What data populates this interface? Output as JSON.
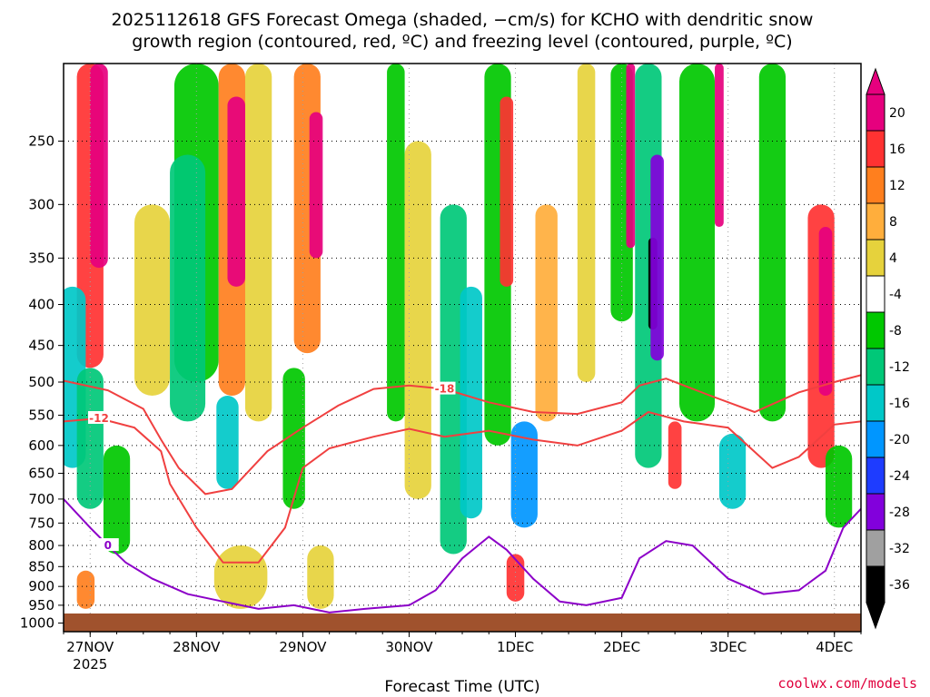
{
  "chart_data": {
    "type": "heatmap",
    "title_line1": "2025112618 GFS Forecast Omega (shaded, −cm/s) for KCHO with dendritic snow",
    "title_line2": "growth region (contoured, red, ºC) and freezing level (contoured, purple, ºC)",
    "xlabel": "Forecast Time (UTC)",
    "credit": "coolwx.com/models",
    "y_ticks": [
      "250",
      "300",
      "350",
      "400",
      "450",
      "500",
      "550",
      "600",
      "650",
      "700",
      "750",
      "800",
      "850",
      "900",
      "950",
      "1000"
    ],
    "y_values_hpa": [
      250,
      300,
      350,
      400,
      450,
      500,
      550,
      600,
      650,
      700,
      750,
      800,
      850,
      900,
      950,
      1000
    ],
    "ylim_hpa": [
      200,
      1025
    ],
    "x_ticks": [
      {
        "label": "27NOV",
        "sub": "2025",
        "hour": 6
      },
      {
        "label": "28NOV",
        "sub": "",
        "hour": 30
      },
      {
        "label": "29NOV",
        "sub": "",
        "hour": 54
      },
      {
        "label": "30NOV",
        "sub": "",
        "hour": 78
      },
      {
        "label": "1DEC",
        "sub": "",
        "hour": 102
      },
      {
        "label": "2DEC",
        "sub": "",
        "hour": 126
      },
      {
        "label": "3DEC",
        "sub": "",
        "hour": 150
      },
      {
        "label": "4DEC",
        "sub": "",
        "hour": 174
      }
    ],
    "xlim_hours": [
      0,
      180
    ],
    "colorbar": {
      "labels": [
        "20",
        "16",
        "12",
        "8",
        "4",
        "-4",
        "-8",
        "-12",
        "-16",
        "-20",
        "-24",
        "-28",
        "-32",
        "-36"
      ],
      "colors": [
        "#e6007e",
        "#ff3232",
        "#ff7f1e",
        "#ffae3c",
        "#e6d23c",
        "#ffffff",
        "#00c800",
        "#00c878",
        "#00c8c8",
        "#0096ff",
        "#1e3cff",
        "#8200dc",
        "#a0a0a0",
        "#000000"
      ]
    },
    "omega_cells": [
      {
        "t": 6,
        "p0": 200,
        "p1": 480,
        "w": 6,
        "v": 16
      },
      {
        "t": 8,
        "p0": 200,
        "p1": 360,
        "w": 4,
        "v": 22
      },
      {
        "t": 2,
        "p0": 380,
        "p1": 640,
        "w": 6,
        "v": -14
      },
      {
        "t": 6,
        "p0": 480,
        "p1": 720,
        "w": 6,
        "v": -10
      },
      {
        "t": 12,
        "p0": 600,
        "p1": 820,
        "w": 6,
        "v": -8
      },
      {
        "t": 5,
        "p0": 860,
        "p1": 960,
        "w": 4,
        "v": 14
      },
      {
        "t": 20,
        "p0": 300,
        "p1": 520,
        "w": 8,
        "v": 6
      },
      {
        "t": 30,
        "p0": 200,
        "p1": 500,
        "w": 10,
        "v": -8
      },
      {
        "t": 28,
        "p0": 260,
        "p1": 560,
        "w": 8,
        "v": -12
      },
      {
        "t": 38,
        "p0": 200,
        "p1": 520,
        "w": 6,
        "v": 12
      },
      {
        "t": 39,
        "p0": 220,
        "p1": 380,
        "w": 4,
        "v": 22
      },
      {
        "t": 37,
        "p0": 520,
        "p1": 680,
        "w": 5,
        "v": -14
      },
      {
        "t": 44,
        "p0": 200,
        "p1": 560,
        "w": 6,
        "v": 6
      },
      {
        "t": 40,
        "p0": 800,
        "p1": 960,
        "w": 12,
        "v": 6
      },
      {
        "t": 55,
        "p0": 200,
        "p1": 460,
        "w": 6,
        "v": 14
      },
      {
        "t": 57,
        "p0": 230,
        "p1": 350,
        "w": 3,
        "v": 22
      },
      {
        "t": 52,
        "p0": 480,
        "p1": 720,
        "w": 5,
        "v": -8
      },
      {
        "t": 58,
        "p0": 800,
        "p1": 960,
        "w": 6,
        "v": 6
      },
      {
        "t": 75,
        "p0": 200,
        "p1": 560,
        "w": 4,
        "v": -8
      },
      {
        "t": 80,
        "p0": 250,
        "p1": 700,
        "w": 6,
        "v": 6
      },
      {
        "t": 88,
        "p0": 300,
        "p1": 820,
        "w": 6,
        "v": -10
      },
      {
        "t": 92,
        "p0": 380,
        "p1": 740,
        "w": 5,
        "v": -14
      },
      {
        "t": 98,
        "p0": 200,
        "p1": 600,
        "w": 6,
        "v": -6
      },
      {
        "t": 100,
        "p0": 220,
        "p1": 380,
        "w": 3,
        "v": 16
      },
      {
        "t": 104,
        "p0": 560,
        "p1": 760,
        "w": 6,
        "v": -18
      },
      {
        "t": 102,
        "p0": 820,
        "p1": 940,
        "w": 4,
        "v": 18
      },
      {
        "t": 109,
        "p0": 300,
        "p1": 560,
        "w": 5,
        "v": 10
      },
      {
        "t": 118,
        "p0": 200,
        "p1": 500,
        "w": 4,
        "v": 6
      },
      {
        "t": 126,
        "p0": 200,
        "p1": 420,
        "w": 5,
        "v": -8
      },
      {
        "t": 128,
        "p0": 200,
        "p1": 340,
        "w": 2,
        "v": 22
      },
      {
        "t": 132,
        "p0": 200,
        "p1": 640,
        "w": 6,
        "v": -12
      },
      {
        "t": 133,
        "p0": 330,
        "p1": 430,
        "w": 2,
        "v": -36
      },
      {
        "t": 134,
        "p0": 260,
        "p1": 470,
        "w": 3,
        "v": -26
      },
      {
        "t": 138,
        "p0": 560,
        "p1": 680,
        "w": 3,
        "v": 16
      },
      {
        "t": 143,
        "p0": 200,
        "p1": 560,
        "w": 8,
        "v": -8
      },
      {
        "t": 148,
        "p0": 200,
        "p1": 320,
        "w": 2,
        "v": 22
      },
      {
        "t": 151,
        "p0": 580,
        "p1": 720,
        "w": 6,
        "v": -14
      },
      {
        "t": 160,
        "p0": 200,
        "p1": 560,
        "w": 6,
        "v": -8
      },
      {
        "t": 171,
        "p0": 300,
        "p1": 640,
        "w": 6,
        "v": 16
      },
      {
        "t": 172,
        "p0": 320,
        "p1": 520,
        "w": 3,
        "v": 22
      },
      {
        "t": 175,
        "p0": 600,
        "p1": 760,
        "w": 6,
        "v": -8
      }
    ],
    "contours": [
      {
        "name": "dgz-minus18-line",
        "color": "#f04040",
        "label": "-18",
        "label_hour": 84,
        "points": [
          [
            0,
            498
          ],
          [
            10,
            512
          ],
          [
            18,
            540
          ],
          [
            22,
            590
          ],
          [
            26,
            640
          ],
          [
            32,
            690
          ],
          [
            38,
            680
          ],
          [
            46,
            610
          ],
          [
            54,
            570
          ],
          [
            62,
            535
          ],
          [
            70,
            510
          ],
          [
            78,
            505
          ],
          [
            86,
            510
          ],
          [
            96,
            530
          ],
          [
            106,
            545
          ],
          [
            116,
            548
          ],
          [
            126,
            530
          ],
          [
            130,
            505
          ],
          [
            136,
            495
          ],
          [
            146,
            520
          ],
          [
            156,
            545
          ],
          [
            166,
            515
          ],
          [
            174,
            500
          ],
          [
            180,
            490
          ]
        ]
      },
      {
        "name": "dgz-minus12-line",
        "color": "#f04040",
        "label": "-12",
        "label_hour": 8,
        "points": [
          [
            0,
            560
          ],
          [
            8,
            555
          ],
          [
            16,
            570
          ],
          [
            22,
            610
          ],
          [
            24,
            670
          ],
          [
            30,
            760
          ],
          [
            36,
            840
          ],
          [
            44,
            840
          ],
          [
            50,
            760
          ],
          [
            54,
            640
          ],
          [
            60,
            605
          ],
          [
            70,
            585
          ],
          [
            78,
            572
          ],
          [
            86,
            585
          ],
          [
            96,
            575
          ],
          [
            106,
            590
          ],
          [
            116,
            600
          ],
          [
            126,
            575
          ],
          [
            132,
            545
          ],
          [
            140,
            560
          ],
          [
            150,
            570
          ],
          [
            160,
            640
          ],
          [
            166,
            620
          ],
          [
            174,
            565
          ],
          [
            180,
            560
          ]
        ]
      },
      {
        "name": "freezing-level-line",
        "color": "#8c00c8",
        "label": "0",
        "label_hour": 10,
        "points": [
          [
            0,
            700
          ],
          [
            6,
            760
          ],
          [
            10,
            800
          ],
          [
            14,
            840
          ],
          [
            20,
            880
          ],
          [
            28,
            920
          ],
          [
            36,
            940
          ],
          [
            44,
            960
          ],
          [
            52,
            950
          ],
          [
            60,
            970
          ],
          [
            68,
            960
          ],
          [
            78,
            950
          ],
          [
            84,
            910
          ],
          [
            90,
            830
          ],
          [
            96,
            780
          ],
          [
            100,
            810
          ],
          [
            106,
            880
          ],
          [
            112,
            940
          ],
          [
            118,
            950
          ],
          [
            126,
            930
          ],
          [
            130,
            830
          ],
          [
            136,
            790
          ],
          [
            142,
            800
          ],
          [
            150,
            880
          ],
          [
            158,
            920
          ],
          [
            166,
            910
          ],
          [
            172,
            860
          ],
          [
            176,
            760
          ],
          [
            180,
            720
          ]
        ]
      }
    ]
  }
}
